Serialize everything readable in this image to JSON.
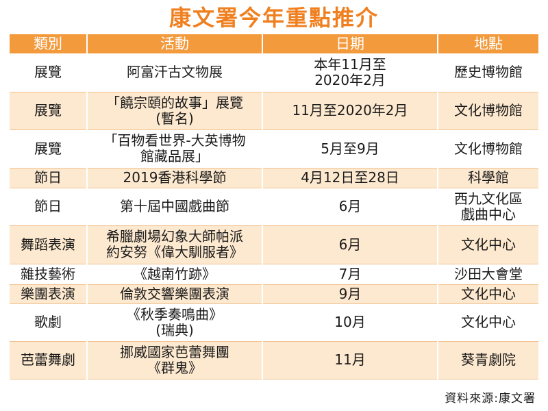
{
  "title": "康文署今年重點推介",
  "headers": [
    "類別",
    "活動",
    "日期",
    "地點"
  ],
  "rows": [
    {
      "category": "展覽",
      "activity": "阿富汗古文物展",
      "date": "本年11月至\n2020年2月",
      "venue": "歷史博物館"
    },
    {
      "category": "展覽",
      "activity": "「饒宗頤的故事」展覽\n(暫名)",
      "date": "11月至2020年2月",
      "venue": "文化博物館"
    },
    {
      "category": "展覽",
      "activity": "「百物看世界-大英博物\n館藏品展」",
      "date": "5月至9月",
      "venue": "文化博物館"
    },
    {
      "category": "節日",
      "activity": "2019香港科學節",
      "date": "4月12日至28日",
      "venue": "科學館"
    },
    {
      "category": "節日",
      "activity": "第十屆中國戲曲節",
      "date": "6月",
      "venue": "西九文化區\n戲曲中心"
    },
    {
      "category": "舞蹈表演",
      "activity": "希臘劇場幻象大師帕派\n約安努《偉大馴服者》",
      "date": "6月",
      "venue": "文化中心"
    },
    {
      "category": "雜技藝術",
      "activity": "《越南竹跡》",
      "date": "7月",
      "venue": "沙田大會堂"
    },
    {
      "category": "樂團表演",
      "activity": "倫敦交響樂團表演",
      "date": "9月",
      "venue": "文化中心"
    },
    {
      "category": "歌劇",
      "activity": "《秋季奏鳴曲》\n(瑞典)",
      "date": "10月",
      "venue": "文化中心"
    },
    {
      "category": "芭蕾舞劇",
      "activity": "挪威國家芭蕾舞團\n《群鬼》",
      "date": "11月",
      "venue": "葵青劇院"
    }
  ],
  "source": "資料來源:康文署",
  "colors": {
    "accent": "#f07f1f",
    "header_bg": "#f39a3c",
    "stripe": "#fde9cf"
  }
}
